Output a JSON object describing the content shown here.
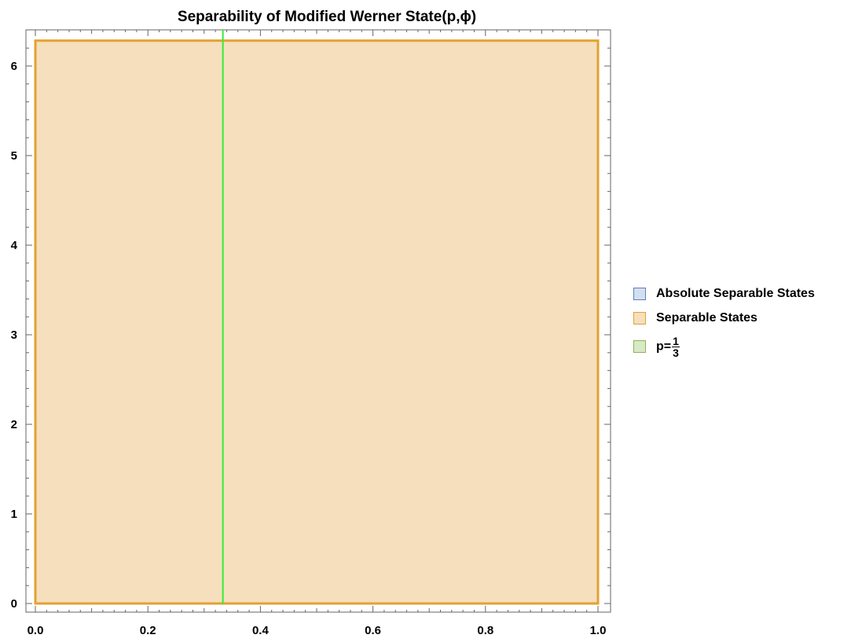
{
  "chart_data": {
    "type": "area",
    "title": "Separability of Modified Werner State(p,ϕ)",
    "xlabel": "",
    "ylabel": "",
    "xlim": [
      0.0,
      1.0
    ],
    "ylim": [
      0.0,
      6.2832
    ],
    "x_ticks": [
      0.0,
      0.2,
      0.4,
      0.6,
      0.8,
      1.0
    ],
    "x_tick_labels": [
      "0.0",
      "0.2",
      "0.4",
      "0.6",
      "0.8",
      "1.0"
    ],
    "y_ticks": [
      0,
      1,
      2,
      3,
      4,
      5,
      6
    ],
    "y_tick_labels": [
      "0",
      "1",
      "2",
      "3",
      "4",
      "5",
      "6"
    ],
    "regions": [
      {
        "name": "Separable States",
        "p_range": [
          0.0,
          1.0
        ],
        "phi_range": [
          0.0,
          6.2832
        ]
      }
    ],
    "vertical_lines": [
      {
        "name": "p=1/3",
        "x": 0.3333
      }
    ],
    "grid": false,
    "legend_placement": "right",
    "legend": [
      {
        "label": "Absolute Separable States",
        "fill": "#d3dff0",
        "stroke": "#5d82b8"
      },
      {
        "label": "Separable States",
        "fill": "#f5dfbd",
        "stroke": "#e3a232"
      },
      {
        "label": "p=",
        "numerator": "1",
        "denominator": "3",
        "fill": "#d9e9c6",
        "stroke": "#8bb359"
      }
    ],
    "colors": {
      "region_fill": "#f5dfbd",
      "region_stroke": "#e3a232",
      "line": "#33ee33",
      "axis": "#666666"
    }
  }
}
